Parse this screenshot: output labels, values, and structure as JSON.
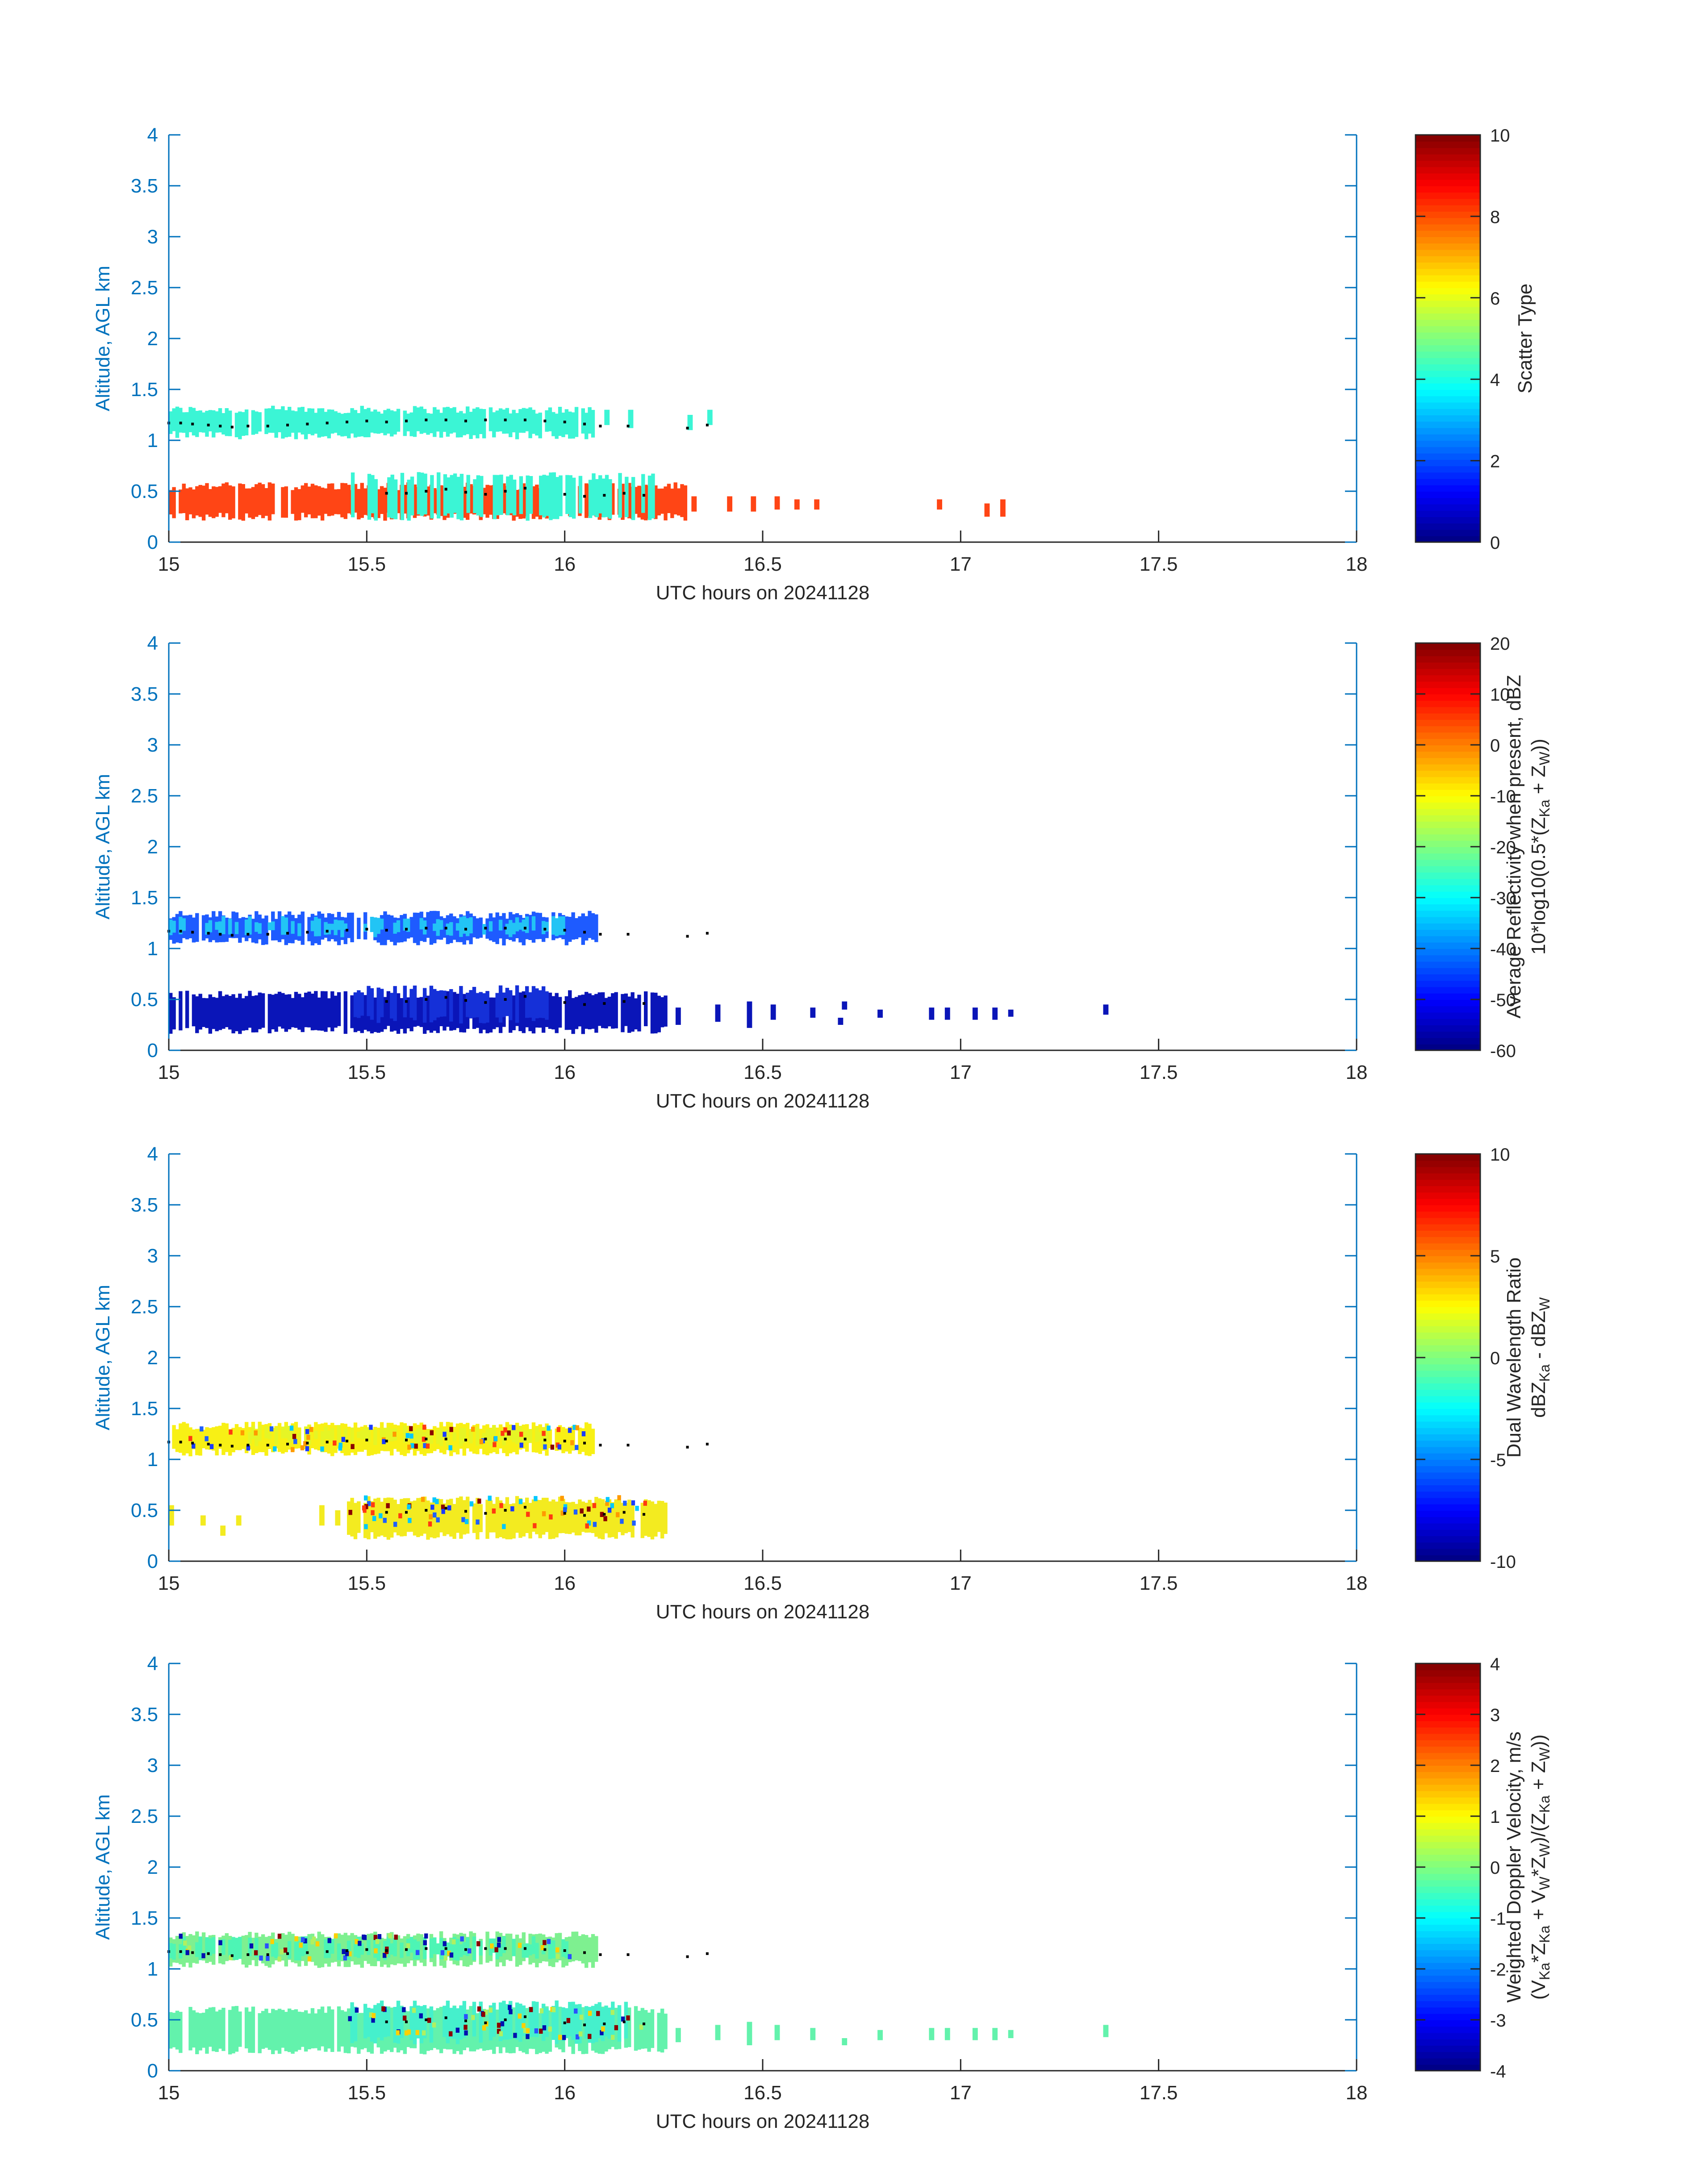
{
  "figure": {
    "date_label": "UTC hours on 20241128",
    "colors": {
      "axis_left": "#0072BD",
      "axis_frame": "#0072BD",
      "text": "#262626",
      "markers": "#000000"
    }
  },
  "chart_data": [
    {
      "type": "heatmap",
      "title": "",
      "xlabel": "UTC hours on 20241128",
      "ylabel": "Altitude, AGL km",
      "xlim": [
        15,
        18
      ],
      "ylim": [
        0,
        4
      ],
      "xticks": [
        15,
        15.5,
        16,
        16.5,
        17,
        17.5,
        18
      ],
      "xtick_labels": [
        "15",
        "15.5",
        "16",
        "16.5",
        "17",
        "17.5",
        "18"
      ],
      "yticks": [
        0,
        0.5,
        1,
        1.5,
        2,
        2.5,
        3,
        3.5,
        4
      ],
      "ytick_labels": [
        "0",
        "0.5",
        "1",
        "1.5",
        "2",
        "2.5",
        "3",
        "3.5",
        "4"
      ],
      "colorbar": {
        "label": [
          "Scatter Type"
        ],
        "range": [
          0,
          10
        ],
        "ticks": [
          0,
          2,
          4,
          6,
          8,
          10
        ],
        "tick_labels": [
          "0",
          "2",
          "4",
          "6",
          "8",
          "10"
        ],
        "colormap": "jet"
      },
      "layers": [
        {
          "name": "upper layer",
          "t_start": 15.0,
          "t_end": 16.07,
          "alt_bottom": 1.05,
          "alt_top": 1.3,
          "value": 4,
          "color": "#3BF5D5",
          "fragments": [
            [
              16.1,
              1.15,
              1.3
            ],
            [
              16.16,
              1.12,
              1.3
            ],
            [
              16.31,
              1.1,
              1.25
            ],
            [
              16.36,
              1.15,
              1.3
            ]
          ]
        },
        {
          "name": "lower layer",
          "t_start": 15.0,
          "t_end": 16.3,
          "alt_bottom": 0.25,
          "alt_top": 0.55,
          "value": 8.5,
          "color": "#FF4515",
          "inner": {
            "t_start": 15.46,
            "t_end": 16.22,
            "alt_bottom": 0.25,
            "alt_top": 0.65,
            "value": 4,
            "color": "#3BF5D5"
          },
          "fragments": [
            [
              16.32,
              0.3,
              0.45
            ],
            [
              16.41,
              0.3,
              0.45
            ],
            [
              16.47,
              0.3,
              0.45
            ],
            [
              16.53,
              0.32,
              0.45
            ],
            [
              16.58,
              0.32,
              0.42
            ],
            [
              16.63,
              0.32,
              0.42
            ],
            [
              16.94,
              0.32,
              0.42
            ],
            [
              17.06,
              0.25,
              0.38
            ],
            [
              17.1,
              0.25,
              0.42
            ]
          ]
        }
      ]
    },
    {
      "type": "heatmap",
      "title": "",
      "xlabel": "UTC hours on 20241128",
      "ylabel": "Altitude, AGL km",
      "xlim": [
        15,
        18
      ],
      "ylim": [
        0,
        4
      ],
      "xticks": [
        15,
        15.5,
        16,
        16.5,
        17,
        17.5,
        18
      ],
      "xtick_labels": [
        "15",
        "15.5",
        "16",
        "16.5",
        "17",
        "17.5",
        "18"
      ],
      "yticks": [
        0,
        0.5,
        1,
        1.5,
        2,
        2.5,
        3,
        3.5,
        4
      ],
      "ytick_labels": [
        "0",
        "0.5",
        "1",
        "1.5",
        "2",
        "2.5",
        "3",
        "3.5",
        "4"
      ],
      "colorbar": {
        "label": [
          "Average Reflectivity when present, dBZ",
          "10*log10(0.5*(Z",
          "Ka",
          " + Z",
          "W",
          "))"
        ],
        "range": [
          -60,
          20
        ],
        "ticks": [
          -60,
          -50,
          -40,
          -30,
          -20,
          -10,
          0,
          10,
          20
        ],
        "tick_labels": [
          "-60",
          "-50",
          "-40",
          "-30",
          "-20",
          "-10",
          "0",
          "10",
          "20"
        ],
        "colormap": "jet"
      },
      "layers": [
        {
          "name": "upper layer",
          "t_start": 15.0,
          "t_end": 16.08,
          "alt_bottom": 1.07,
          "alt_top": 1.33,
          "value": -42,
          "color": "#1E5BFF",
          "inner": {
            "t_start": 15.0,
            "t_end": 16.0,
            "alt_bottom": 1.15,
            "alt_top": 1.28,
            "value": -35,
            "color": "#22C4F5"
          },
          "fragments": []
        },
        {
          "name": "lower layer",
          "t_start": 15.0,
          "t_end": 16.25,
          "alt_bottom": 0.2,
          "alt_top": 0.55,
          "value": -55,
          "color": "#0A15B8",
          "inner": {
            "t_start": 15.45,
            "t_end": 15.95,
            "alt_bottom": 0.3,
            "alt_top": 0.6,
            "value": -50,
            "color": "#1530D8"
          },
          "fragments": [
            [
              16.28,
              0.25,
              0.42
            ],
            [
              16.38,
              0.28,
              0.45
            ],
            [
              16.46,
              0.22,
              0.48
            ],
            [
              16.52,
              0.3,
              0.45
            ],
            [
              16.62,
              0.32,
              0.42
            ],
            [
              16.7,
              0.4,
              0.48
            ],
            [
              16.69,
              0.25,
              0.32
            ],
            [
              16.79,
              0.32,
              0.4
            ],
            [
              16.92,
              0.3,
              0.42
            ],
            [
              16.96,
              0.3,
              0.42
            ],
            [
              17.03,
              0.3,
              0.42
            ],
            [
              17.08,
              0.3,
              0.42
            ],
            [
              17.12,
              0.33,
              0.4
            ],
            [
              17.36,
              0.35,
              0.45
            ]
          ]
        }
      ]
    },
    {
      "type": "heatmap",
      "title": "",
      "xlabel": "UTC hours on 20241128",
      "ylabel": "Altitude, AGL km",
      "xlim": [
        15,
        18
      ],
      "ylim": [
        0,
        4
      ],
      "xticks": [
        15,
        15.5,
        16,
        16.5,
        17,
        17.5,
        18
      ],
      "xtick_labels": [
        "15",
        "15.5",
        "16",
        "16.5",
        "17",
        "17.5",
        "18"
      ],
      "yticks": [
        0,
        0.5,
        1,
        1.5,
        2,
        2.5,
        3,
        3.5,
        4
      ],
      "ytick_labels": [
        "0",
        "0.5",
        "1",
        "1.5",
        "2",
        "2.5",
        "3",
        "3.5",
        "4"
      ],
      "colorbar": {
        "label": [
          "Dual Wavelength Ratio",
          "dBZ",
          "Ka",
          " - dBZ",
          "W"
        ],
        "range": [
          -10,
          10
        ],
        "ticks": [
          -10,
          -5,
          0,
          5,
          10
        ],
        "tick_labels": [
          "-10",
          "-5",
          "0",
          "5",
          "10"
        ],
        "colormap": "jet"
      },
      "layers": [
        {
          "name": "upper layer",
          "t_start": 15.0,
          "t_end": 16.07,
          "alt_bottom": 1.07,
          "alt_top": 1.33,
          "value": 2,
          "color": "#F8F015",
          "inner": {
            "t_start": 15.2,
            "t_end": 15.95,
            "alt_bottom": 1.17,
            "alt_top": 1.3,
            "value": 1,
            "color": "#E6F525"
          },
          "fragments": []
        },
        {
          "name": "lower layer",
          "t_start": 15.45,
          "t_end": 16.25,
          "alt_bottom": 0.25,
          "alt_top": 0.6,
          "value": 1.5,
          "color": "#F3EB20",
          "fragments": [
            [
              15.0,
              0.35,
              0.55
            ],
            [
              15.08,
              0.35,
              0.45
            ],
            [
              15.13,
              0.25,
              0.35
            ],
            [
              15.17,
              0.35,
              0.45
            ],
            [
              15.38,
              0.35,
              0.55
            ],
            [
              15.42,
              0.35,
              0.5
            ]
          ]
        }
      ]
    },
    {
      "type": "heatmap",
      "title": "",
      "xlabel": "UTC hours on 20241128",
      "ylabel": "Altitude, AGL km",
      "xlim": [
        15,
        18
      ],
      "ylim": [
        0,
        4
      ],
      "xticks": [
        15,
        15.5,
        16,
        16.5,
        17,
        17.5,
        18
      ],
      "xtick_labels": [
        "15",
        "15.5",
        "16",
        "16.5",
        "17",
        "17.5",
        "18"
      ],
      "yticks": [
        0,
        0.5,
        1,
        1.5,
        2,
        2.5,
        3,
        3.5,
        4
      ],
      "ytick_labels": [
        "0",
        "0.5",
        "1",
        "1.5",
        "2",
        "2.5",
        "3",
        "3.5",
        "4"
      ],
      "colorbar": {
        "label": [
          "Weighted Doppler Velocity, m/s",
          "(V",
          "Ka",
          "*Z",
          "Ka",
          " + V",
          "W",
          "*Z",
          "W",
          ")/(Z",
          "Ka",
          " + Z",
          "W",
          "))"
        ],
        "range": [
          -4,
          4
        ],
        "ticks": [
          -4,
          -3,
          -2,
          -1,
          0,
          1,
          2,
          3,
          4
        ],
        "tick_labels": [
          "-4",
          "-3",
          "-2",
          "-1",
          "0",
          "1",
          "2",
          "3",
          "4"
        ],
        "colormap": "jet"
      },
      "layers": [
        {
          "name": "upper layer",
          "t_start": 15.0,
          "t_end": 16.08,
          "alt_bottom": 1.05,
          "alt_top": 1.33,
          "value": -0.3,
          "color": "#7EF090",
          "inner": {
            "t_start": 15.0,
            "t_end": 16.0,
            "alt_bottom": 1.12,
            "alt_top": 1.28,
            "value": -0.8,
            "color": "#4DF5B5"
          },
          "fragments": []
        },
        {
          "name": "lower layer",
          "t_start": 15.0,
          "t_end": 16.25,
          "alt_bottom": 0.2,
          "alt_top": 0.6,
          "value": -0.8,
          "color": "#63F2AC",
          "inner": {
            "t_start": 15.45,
            "t_end": 16.15,
            "alt_bottom": 0.3,
            "alt_top": 0.65,
            "value": -1.2,
            "color": "#45F0CC"
          },
          "fragments": [
            [
              16.28,
              0.28,
              0.42
            ],
            [
              16.38,
              0.3,
              0.45
            ],
            [
              16.46,
              0.25,
              0.48
            ],
            [
              16.53,
              0.3,
              0.45
            ],
            [
              16.62,
              0.3,
              0.42
            ],
            [
              16.7,
              0.25,
              0.32
            ],
            [
              16.79,
              0.3,
              0.4
            ],
            [
              16.92,
              0.3,
              0.42
            ],
            [
              16.96,
              0.3,
              0.42
            ],
            [
              17.03,
              0.3,
              0.42
            ],
            [
              17.08,
              0.3,
              0.42
            ],
            [
              17.12,
              0.32,
              0.4
            ],
            [
              17.36,
              0.33,
              0.45
            ]
          ]
        }
      ]
    }
  ],
  "black_markers": {
    "upper_trace": [
      [
        15.0,
        1.17
      ],
      [
        15.03,
        1.17
      ],
      [
        15.06,
        1.16
      ],
      [
        15.1,
        1.15
      ],
      [
        15.13,
        1.14
      ],
      [
        15.16,
        1.13
      ],
      [
        15.2,
        1.14
      ],
      [
        15.25,
        1.14
      ],
      [
        15.3,
        1.15
      ],
      [
        15.35,
        1.16
      ],
      [
        15.4,
        1.17
      ],
      [
        15.45,
        1.18
      ],
      [
        15.5,
        1.19
      ],
      [
        15.55,
        1.18
      ],
      [
        15.6,
        1.19
      ],
      [
        15.65,
        1.2
      ],
      [
        15.7,
        1.2
      ],
      [
        15.75,
        1.19
      ],
      [
        15.8,
        1.2
      ],
      [
        15.85,
        1.2
      ],
      [
        15.9,
        1.2
      ],
      [
        15.95,
        1.19
      ],
      [
        16.0,
        1.18
      ],
      [
        16.05,
        1.16
      ]
    ],
    "upper_isolated": [
      [
        16.09,
        1.14
      ],
      [
        16.16,
        1.14
      ],
      [
        16.31,
        1.12
      ],
      [
        16.36,
        1.15
      ]
    ],
    "lower_trace": [
      [
        15.55,
        0.48
      ],
      [
        15.6,
        0.48
      ],
      [
        15.65,
        0.5
      ],
      [
        15.7,
        0.52
      ],
      [
        15.75,
        0.49
      ],
      [
        15.8,
        0.47
      ],
      [
        15.85,
        0.5
      ],
      [
        15.9,
        0.53
      ],
      [
        16.0,
        0.47
      ],
      [
        16.05,
        0.45
      ],
      [
        16.1,
        0.46
      ],
      [
        16.15,
        0.48
      ],
      [
        16.2,
        0.46
      ]
    ]
  }
}
